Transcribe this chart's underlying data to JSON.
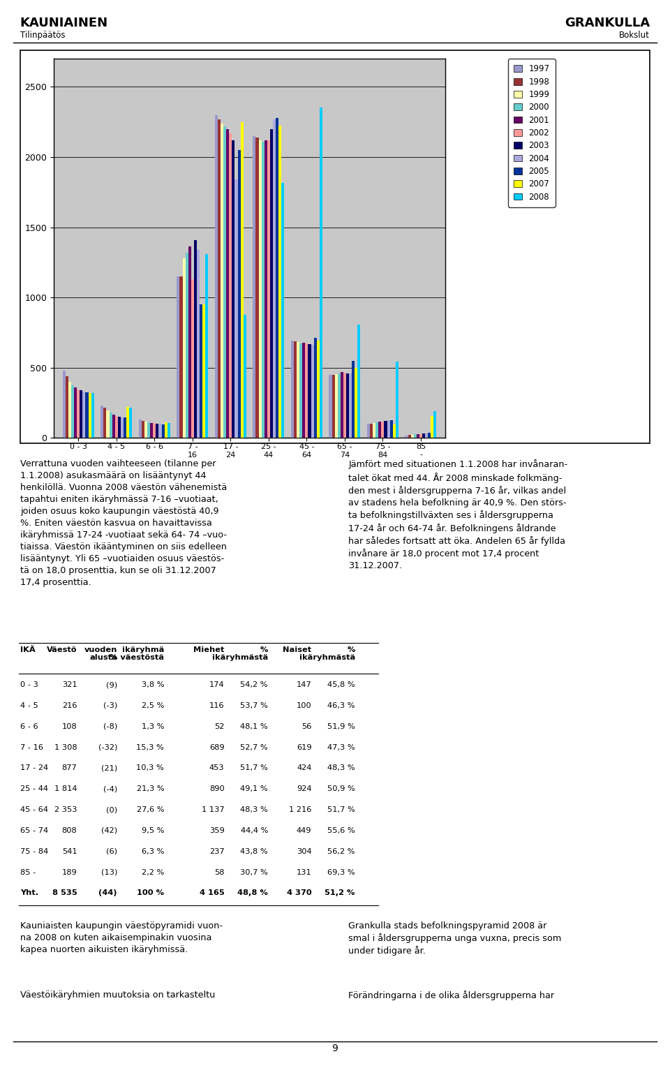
{
  "title_left": "KAUNIAINEN",
  "subtitle_left": "Tilinpäätös",
  "title_right": "GRANKULLA",
  "subtitle_right": "Bokslut",
  "cat_labels_line1": [
    "0 - 3",
    "4 - 5",
    "6 - 6",
    "7 -",
    "17 -",
    "25 -",
    "45 -",
    "65 -",
    "75 -",
    "85"
  ],
  "cat_labels_line2": [
    "",
    "",
    "",
    "16",
    "24",
    "44",
    "64",
    "74",
    "84",
    "-"
  ],
  "years": [
    1997,
    1998,
    1999,
    2000,
    2001,
    2002,
    2003,
    2004,
    2005,
    2007,
    2008
  ],
  "colors": [
    "#9999cc",
    "#993333",
    "#ffffaa",
    "#66cccc",
    "#660066",
    "#ff9999",
    "#000066",
    "#aaaadd",
    "#003399",
    "#ffff00",
    "#00ccff"
  ],
  "data": {
    "1997": [
      480,
      230,
      130,
      1150,
      2300,
      2150,
      690,
      450,
      100,
      18
    ],
    "1998": [
      440,
      215,
      120,
      1150,
      2270,
      2140,
      688,
      450,
      103,
      20
    ],
    "1999": [
      400,
      195,
      115,
      1280,
      2240,
      2120,
      682,
      455,
      108,
      22
    ],
    "2000": [
      375,
      180,
      112,
      1320,
      2220,
      2110,
      675,
      460,
      112,
      24
    ],
    "2001": [
      358,
      168,
      108,
      1365,
      2200,
      2120,
      678,
      468,
      116,
      26
    ],
    "2002": [
      343,
      158,
      105,
      1130,
      2170,
      2118,
      672,
      462,
      118,
      28
    ],
    "2003": [
      338,
      152,
      103,
      1410,
      2120,
      2200,
      668,
      458,
      120,
      30
    ],
    "2004": [
      330,
      148,
      100,
      1340,
      1840,
      2270,
      662,
      458,
      124,
      32
    ],
    "2005": [
      326,
      146,
      98,
      950,
      2050,
      2280,
      712,
      548,
      128,
      34
    ],
    "2007": [
      322,
      222,
      112,
      950,
      2250,
      2225,
      692,
      498,
      98,
      158
    ],
    "2008": [
      321,
      216,
      108,
      1308,
      877,
      1814,
      2353,
      808,
      541,
      189
    ]
  },
  "ylim": [
    0,
    2700
  ],
  "yticks": [
    0,
    500,
    1000,
    1500,
    2000,
    2500
  ],
  "chart_bg": "#c8c8c8",
  "fig_bg": "#ffffff"
}
